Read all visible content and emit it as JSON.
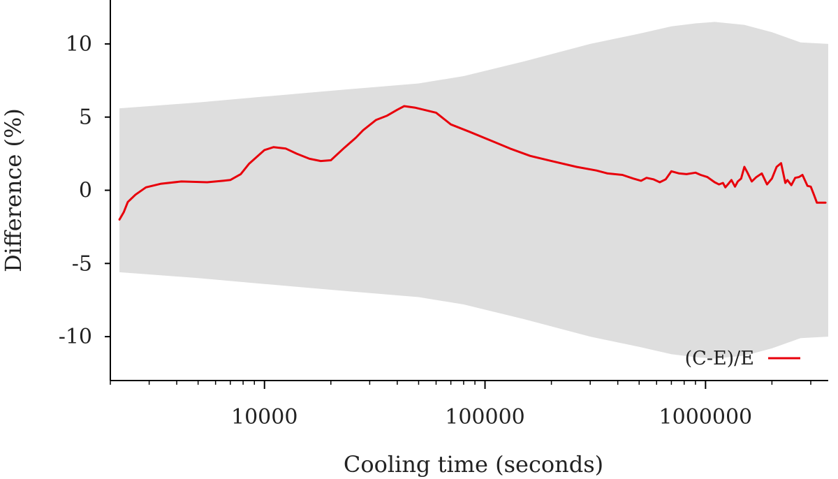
{
  "chart_data": {
    "type": "line",
    "title": "",
    "xlabel": "Cooling time (seconds)",
    "ylabel": "Difference (%)",
    "x_scale": "log",
    "xlim": [
      2000,
      3600000
    ],
    "ylim": [
      -13,
      13
    ],
    "x_ticks": [
      10000,
      100000,
      1000000
    ],
    "x_tick_labels": [
      "10000",
      "100000",
      "1000000"
    ],
    "y_ticks": [
      -10,
      -5,
      0,
      5,
      10
    ],
    "y_tick_labels": [
      "-10",
      "-5",
      "0",
      "5",
      "10"
    ],
    "grid": false,
    "legend_position": "bottom-right",
    "colors": {
      "line": "#e8000b",
      "band": "#dedede",
      "axis": "#000000",
      "text": "#222222"
    },
    "uncertainty_band": {
      "x": [
        2200,
        3000,
        5000,
        10000,
        20000,
        50000,
        80000,
        150000,
        300000,
        500000,
        700000,
        900000,
        1100000,
        1500000,
        2000000,
        2700000,
        3600000
      ],
      "upper": [
        5.6,
        5.75,
        6.0,
        6.4,
        6.8,
        7.3,
        7.8,
        8.8,
        10.0,
        10.7,
        11.2,
        11.4,
        11.5,
        11.3,
        10.8,
        10.1,
        10.0
      ],
      "lower": [
        -5.6,
        -5.75,
        -6.0,
        -6.4,
        -6.8,
        -7.3,
        -7.8,
        -8.8,
        -10.0,
        -10.7,
        -11.2,
        -11.4,
        -11.5,
        -11.3,
        -10.8,
        -10.1,
        -10.0
      ]
    },
    "series": [
      {
        "name": "(C-E)/E",
        "x": [
          2200,
          2300,
          2400,
          2600,
          2900,
          3400,
          4200,
          5500,
          6500,
          7000,
          7800,
          8500,
          10000,
          11000,
          12500,
          14000,
          16000,
          18000,
          20000,
          23000,
          26000,
          28000,
          32000,
          36000,
          40000,
          43000,
          48000,
          60000,
          70000,
          85000,
          110000,
          130000,
          160000,
          200000,
          260000,
          320000,
          360000,
          420000,
          470000,
          510000,
          540000,
          580000,
          620000,
          660000,
          700000,
          760000,
          820000,
          900000,
          950000,
          1020000,
          1100000,
          1150000,
          1200000,
          1230000,
          1270000,
          1310000,
          1360000,
          1400000,
          1450000,
          1500000,
          1550000,
          1620000,
          1700000,
          1800000,
          1900000,
          2000000,
          2100000,
          2200000,
          2300000,
          2350000,
          2450000,
          2550000,
          2650000,
          2750000,
          2900000,
          3000000,
          3100000,
          3200000,
          3300000,
          3500000
        ],
        "y": [
          -2.0,
          -1.5,
          -0.8,
          -0.3,
          0.2,
          0.45,
          0.6,
          0.55,
          0.65,
          0.7,
          1.1,
          1.8,
          2.75,
          2.95,
          2.85,
          2.5,
          2.15,
          2.0,
          2.05,
          2.9,
          3.6,
          4.1,
          4.8,
          5.1,
          5.5,
          5.75,
          5.65,
          5.3,
          4.5,
          4.0,
          3.3,
          2.85,
          2.35,
          2.0,
          1.6,
          1.35,
          1.15,
          1.05,
          0.8,
          0.65,
          0.85,
          0.75,
          0.55,
          0.75,
          1.3,
          1.15,
          1.1,
          1.2,
          1.05,
          0.9,
          0.55,
          0.4,
          0.5,
          0.2,
          0.45,
          0.7,
          0.25,
          0.6,
          0.8,
          1.6,
          1.2,
          0.6,
          0.9,
          1.15,
          0.4,
          0.8,
          1.6,
          1.85,
          0.5,
          0.7,
          0.35,
          0.85,
          0.9,
          1.05,
          0.3,
          0.25,
          -0.3,
          -0.85,
          -0.85,
          -0.85
        ]
      }
    ]
  }
}
